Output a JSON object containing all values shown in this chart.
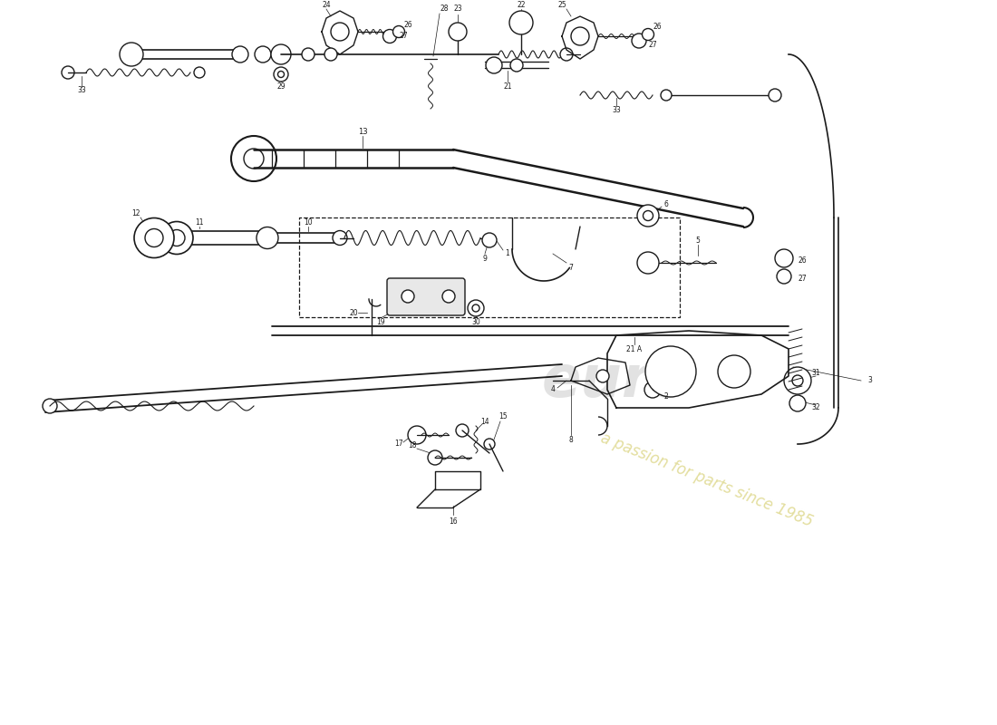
{
  "bg_color": "#ffffff",
  "line_color": "#1a1a1a",
  "wm_color1": "#b8b8b8",
  "wm_color2": "#d4cc6a",
  "figsize": [
    11.0,
    8.0
  ],
  "dpi": 100,
  "xlim": [
    0,
    110
  ],
  "ylim": [
    0,
    80
  ]
}
